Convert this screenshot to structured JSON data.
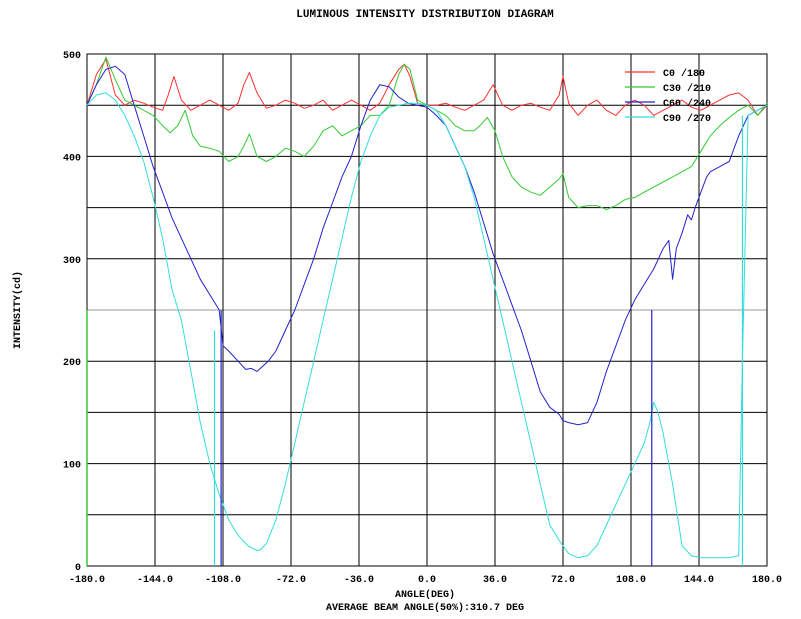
{
  "chart_data": {
    "type": "line",
    "title": "LUMINOUS INTENSITY DISTRIBUTION DIAGRAM",
    "xlabel": "ANGLE(DEG)",
    "ylabel": "INTENSITY(cd)",
    "footer": "AVERAGE BEAM ANGLE(50%):310.7 DEG",
    "xlim": [
      -180,
      180
    ],
    "ylim": [
      0,
      500
    ],
    "grid": true,
    "legend_position": "top-right",
    "x_ticks": [
      "-180.0",
      "-144.0",
      "-108.0",
      "-72.0",
      "-36.0",
      "0.0",
      "36.0",
      "72.0",
      "108.0",
      "144.0",
      "180.0"
    ],
    "x_tick_values": [
      -180,
      -144,
      -108,
      -72,
      -36,
      0,
      36,
      72,
      108,
      144,
      180
    ],
    "y_ticks": [
      "0",
      "100",
      "200",
      "300",
      "400",
      "500"
    ],
    "y_tick_values": [
      0,
      100,
      200,
      300,
      400,
      500
    ],
    "half_max_line": 250,
    "series": [
      {
        "name": "C0 /180",
        "color": "#ff3030",
        "x": [
          -180,
          -175,
          -170,
          -165,
          -160,
          -155,
          -150,
          -145,
          -140,
          -137,
          -134,
          -130,
          -125,
          -120,
          -115,
          -110,
          -105,
          -100,
          -97,
          -94,
          -90,
          -85,
          -80,
          -75,
          -70,
          -65,
          -60,
          -55,
          -50,
          -45,
          -40,
          -35,
          -30,
          -25,
          -20,
          -15,
          -12,
          -9,
          -5,
          0,
          5,
          10,
          15,
          20,
          25,
          30,
          35,
          40,
          45,
          50,
          55,
          60,
          65,
          70,
          72,
          75,
          80,
          85,
          90,
          95,
          100,
          105,
          110,
          115,
          120,
          125,
          130,
          135,
          140,
          145,
          150,
          155,
          160,
          165,
          170,
          175,
          180
        ],
        "y": [
          450,
          480,
          495,
          460,
          450,
          455,
          452,
          448,
          445,
          460,
          478,
          455,
          445,
          450,
          455,
          450,
          445,
          452,
          470,
          482,
          462,
          447,
          450,
          455,
          452,
          447,
          450,
          455,
          445,
          450,
          455,
          450,
          445,
          452,
          470,
          485,
          490,
          478,
          452,
          450,
          450,
          452,
          448,
          445,
          450,
          455,
          470,
          450,
          445,
          450,
          452,
          448,
          445,
          460,
          478,
          452,
          440,
          450,
          455,
          445,
          440,
          450,
          455,
          450,
          440,
          445,
          450,
          455,
          448,
          445,
          450,
          455,
          460,
          462,
          455,
          440,
          450
        ]
      },
      {
        "name": "C30 /210",
        "color": "#33cc33",
        "x": [
          -180,
          -175,
          -170,
          -165,
          -160,
          -155,
          -150,
          -145,
          -140,
          -136,
          -132,
          -128,
          -124,
          -120,
          -115,
          -110,
          -105,
          -100,
          -97,
          -94,
          -90,
          -85,
          -80,
          -75,
          -70,
          -65,
          -60,
          -55,
          -50,
          -45,
          -40,
          -35,
          -30,
          -25,
          -20,
          -15,
          -12,
          -9,
          -5,
          0,
          5,
          10,
          15,
          20,
          25,
          28,
          32,
          36,
          40,
          45,
          50,
          55,
          60,
          65,
          70,
          72,
          75,
          80,
          85,
          90,
          95,
          100,
          105,
          110,
          115,
          120,
          125,
          130,
          135,
          140,
          145,
          150,
          155,
          160,
          165,
          170,
          175,
          180
        ],
        "y": [
          450,
          470,
          497,
          475,
          455,
          450,
          445,
          440,
          430,
          423,
          430,
          445,
          420,
          410,
          408,
          405,
          395,
          400,
          410,
          422,
          400,
          395,
          400,
          408,
          405,
          400,
          410,
          425,
          430,
          420,
          425,
          430,
          440,
          440,
          450,
          480,
          490,
          485,
          455,
          450,
          445,
          440,
          430,
          425,
          425,
          430,
          438,
          425,
          400,
          380,
          370,
          365,
          362,
          370,
          378,
          383,
          360,
          350,
          352,
          352,
          348,
          352,
          358,
          360,
          365,
          370,
          375,
          380,
          385,
          390,
          405,
          420,
          430,
          438,
          445,
          450,
          440,
          452
        ]
      },
      {
        "name": "C60 /240",
        "color": "#2222cc",
        "x": [
          -180,
          -175,
          -170,
          -165,
          -160,
          -155,
          -150,
          -145,
          -140,
          -135,
          -130,
          -125,
          -120,
          -115,
          -110,
          -108,
          -105,
          -100,
          -96,
          -93,
          -90,
          -87,
          -84,
          -80,
          -75,
          -70,
          -65,
          -60,
          -55,
          -50,
          -45,
          -40,
          -35,
          -30,
          -25,
          -20,
          -15,
          -10,
          -5,
          0,
          5,
          10,
          15,
          20,
          25,
          30,
          35,
          40,
          45,
          50,
          55,
          60,
          65,
          70,
          72,
          75,
          80,
          85,
          90,
          95,
          100,
          105,
          110,
          115,
          120,
          125,
          128,
          130,
          132,
          135,
          138,
          140,
          142,
          145,
          148,
          150,
          155,
          160,
          165,
          170,
          175,
          180
        ],
        "y": [
          450,
          470,
          485,
          488,
          480,
          450,
          420,
          390,
          365,
          340,
          320,
          300,
          280,
          265,
          250,
          215,
          210,
          200,
          192,
          193,
          190,
          195,
          200,
          210,
          230,
          250,
          275,
          300,
          330,
          355,
          380,
          400,
          430,
          455,
          470,
          468,
          458,
          452,
          450,
          448,
          440,
          430,
          410,
          390,
          365,
          335,
          305,
          280,
          255,
          230,
          200,
          170,
          155,
          148,
          142,
          140,
          138,
          140,
          160,
          190,
          215,
          240,
          260,
          275,
          290,
          310,
          318,
          280,
          310,
          325,
          343,
          338,
          350,
          365,
          380,
          385,
          390,
          395,
          420,
          440,
          445,
          450
        ]
      },
      {
        "name": "C90 /270",
        "color": "#33dddd",
        "x": [
          -180,
          -175,
          -170,
          -165,
          -160,
          -155,
          -150,
          -145,
          -140,
          -135,
          -130,
          -125,
          -120,
          -115,
          -110,
          -105,
          -100,
          -95,
          -90,
          -88,
          -85,
          -80,
          -75,
          -70,
          -65,
          -60,
          -55,
          -50,
          -45,
          -40,
          -35,
          -30,
          -25,
          -20,
          -15,
          -10,
          -5,
          0,
          5,
          10,
          15,
          20,
          25,
          30,
          35,
          40,
          45,
          50,
          55,
          60,
          65,
          70,
          75,
          80,
          85,
          90,
          95,
          100,
          105,
          110,
          115,
          118,
          120,
          122,
          125,
          130,
          135,
          140,
          145,
          150,
          155,
          160,
          165,
          167,
          170,
          175,
          180
        ],
        "y": [
          450,
          460,
          462,
          455,
          440,
          420,
          395,
          360,
          320,
          270,
          240,
          190,
          140,
          100,
          70,
          45,
          30,
          20,
          15,
          16,
          22,
          45,
          80,
          120,
          160,
          200,
          240,
          280,
          320,
          360,
          395,
          420,
          440,
          448,
          450,
          452,
          452,
          450,
          445,
          430,
          410,
          390,
          360,
          320,
          280,
          240,
          200,
          160,
          120,
          80,
          40,
          25,
          12,
          8,
          10,
          20,
          40,
          60,
          80,
          100,
          120,
          140,
          160,
          152,
          130,
          80,
          20,
          10,
          8,
          8,
          8,
          8,
          10,
          200,
          440,
          445,
          450
        ]
      }
    ],
    "drops": [
      {
        "series": "C90 /270",
        "x": -112.5,
        "from": 230
      },
      {
        "series": "C60 /240",
        "x": -109,
        "from": 250
      },
      {
        "series": "C60 /240",
        "x": 119,
        "from": 250
      },
      {
        "series": "C90 /270",
        "x": 167,
        "from": 440
      }
    ]
  }
}
